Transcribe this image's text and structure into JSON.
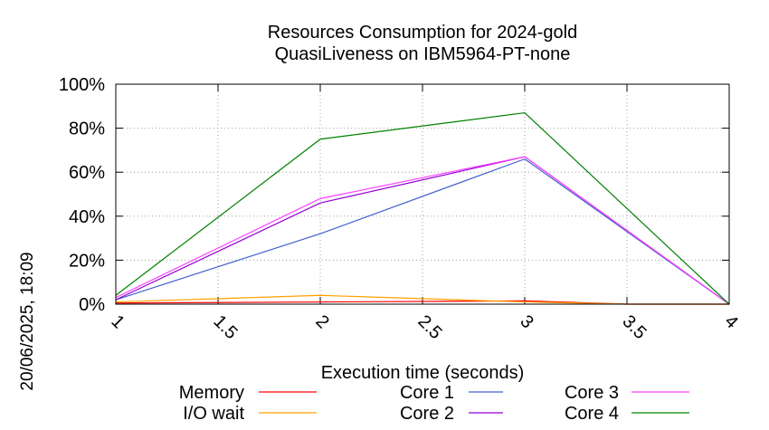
{
  "chart_data": {
    "type": "line",
    "title_line1": "Resources Consumption for 2024-gold",
    "title_line2": "QuasiLiveness on IBM5964-PT-none",
    "xlabel": "Execution time (seconds)",
    "ylabel": "",
    "timestamp": "20/06/2025, 18:09",
    "xlim": [
      1,
      4
    ],
    "ylim": [
      0,
      100
    ],
    "x_ticks": [
      1,
      1.5,
      2,
      2.5,
      3,
      3.5,
      4
    ],
    "x_tick_labels": [
      "1",
      "1.5",
      "2",
      "2.5",
      "3",
      "3.5",
      "4"
    ],
    "y_ticks": [
      0,
      20,
      40,
      60,
      80,
      100
    ],
    "y_tick_labels": [
      "0%",
      "20%",
      "40%",
      "60%",
      "80%",
      "100%"
    ],
    "grid": true,
    "legend_position": "bottom",
    "series": [
      {
        "name": "Memory",
        "color": "#ff0000",
        "x": [
          1,
          2,
          3,
          3.5,
          4
        ],
        "values": [
          0.5,
          1,
          1.5,
          0,
          0
        ]
      },
      {
        "name": "I/O wait",
        "color": "#ffa000",
        "x": [
          1,
          2,
          3,
          3.5,
          4
        ],
        "values": [
          1,
          4,
          1,
          0,
          0
        ]
      },
      {
        "name": "Core 1",
        "color": "#4060d0",
        "x": [
          1,
          2,
          3,
          4
        ],
        "values": [
          2,
          32,
          66,
          0
        ]
      },
      {
        "name": "Core 2",
        "color": "#9400d3",
        "x": [
          1,
          2,
          3,
          4
        ],
        "values": [
          2,
          46,
          67,
          0
        ]
      },
      {
        "name": "Core 3",
        "color": "#ff40ff",
        "x": [
          1,
          2,
          3,
          4
        ],
        "values": [
          3,
          48,
          67,
          0
        ]
      },
      {
        "name": "Core 4",
        "color": "#008000",
        "x": [
          1,
          2,
          3,
          4
        ],
        "values": [
          4,
          75,
          87,
          0
        ]
      }
    ]
  }
}
